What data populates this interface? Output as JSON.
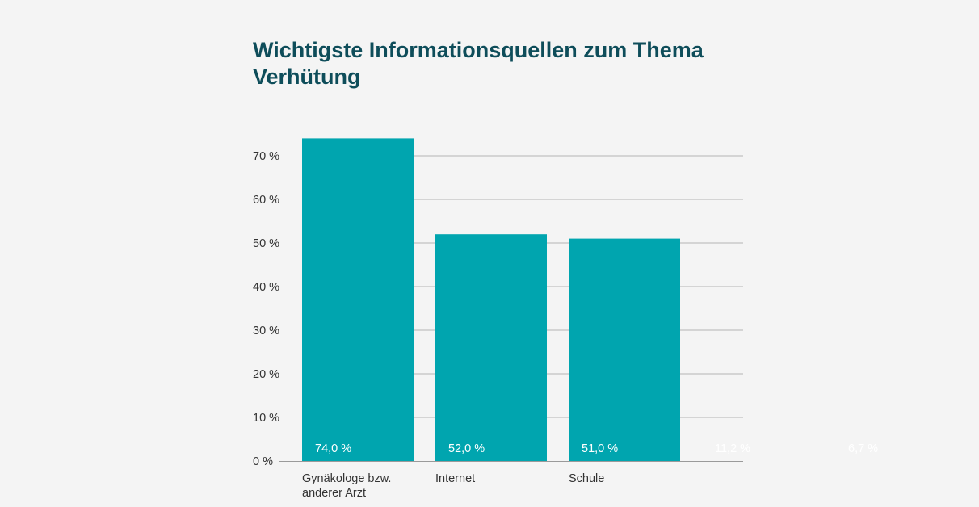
{
  "chart_data": {
    "type": "bar",
    "title": "Wichtigste Informationsquellen zum Thema Verhütung",
    "categories": [
      [
        "Gynäkologe bzw.",
        "anderer Arzt"
      ],
      [
        "Internet"
      ],
      [
        "Schule"
      ],
      [
        ""
      ],
      [
        ""
      ]
    ],
    "values": [
      74.0,
      52.0,
      51.0,
      11.2,
      6.7
    ],
    "value_labels": [
      "74,0 %",
      "52,0 %",
      "51,0 %",
      "11,2 %",
      "6,7 %"
    ],
    "yticks": [
      0,
      10,
      20,
      30,
      40,
      50,
      60,
      70
    ],
    "ytick_labels": [
      "0 %",
      "10 %",
      "20 %",
      "30 %",
      "40 %",
      "50 %",
      "60 %",
      "70 %"
    ],
    "ylim": [
      0,
      76
    ],
    "grid": true,
    "xlabel": "",
    "ylabel": "",
    "bar_color": "#00a5af"
  }
}
